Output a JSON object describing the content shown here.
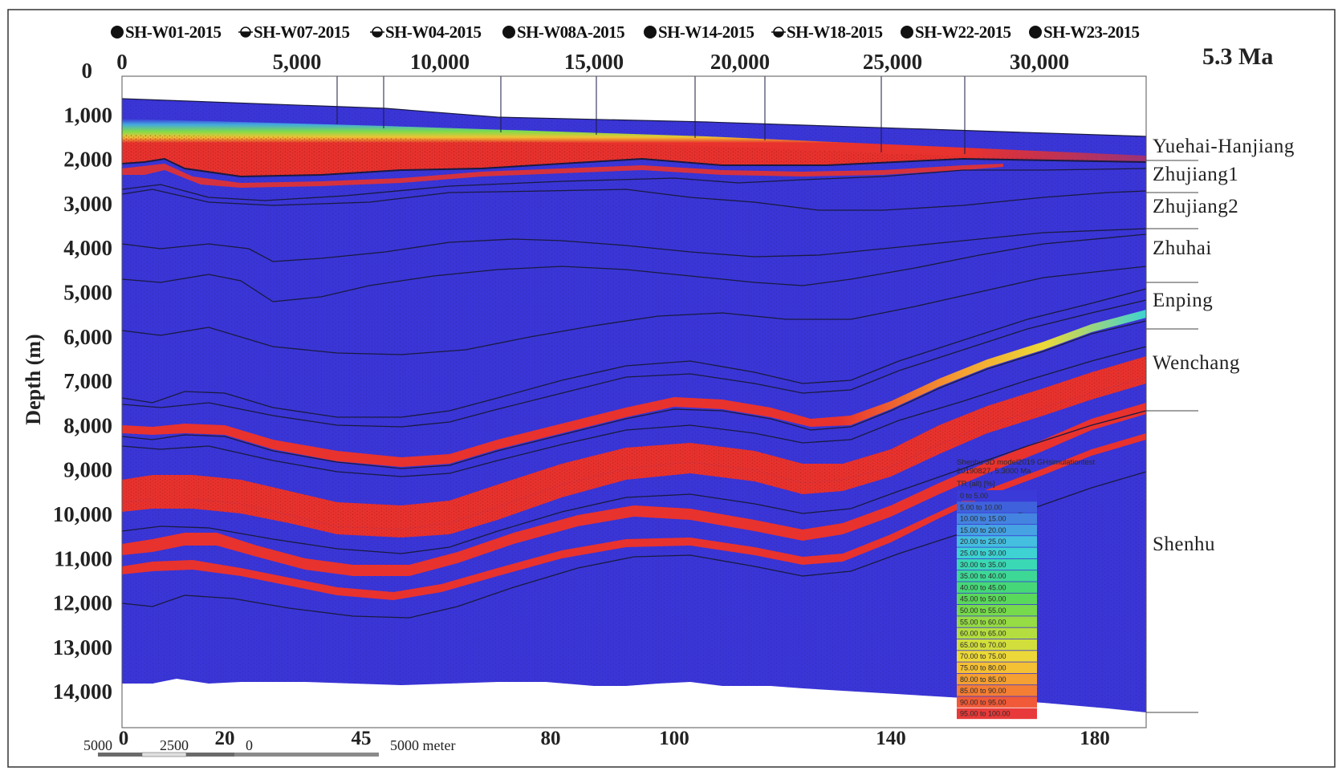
{
  "figure": {
    "age_label": "5.3 Ma",
    "y_axis_label": "Depth (m)",
    "top_axis_ticks": [
      "0",
      "5,000",
      "10,000",
      "15,000",
      "20,000",
      "25,000",
      "30,000"
    ],
    "depth_ticks": [
      "0",
      "1,000",
      "2,000",
      "3,000",
      "4,000",
      "5,000",
      "6,000",
      "7,000",
      "8,000",
      "9,000",
      "10,000",
      "11,000",
      "12,000",
      "13,000",
      "14,000"
    ],
    "bottom_axis_ticks": [
      "0",
      "20",
      "45",
      "80",
      "100",
      "140",
      "180"
    ],
    "wells": [
      {
        "name": "SH-W01-2015",
        "symbol": "filled"
      },
      {
        "name": "SH-W07-2015",
        "symbol": "gas"
      },
      {
        "name": "SH-W04-2015",
        "symbol": "gas"
      },
      {
        "name": "SH-W08A-2015",
        "symbol": "filled"
      },
      {
        "name": "SH-W14-2015",
        "symbol": "filled"
      },
      {
        "name": "SH-W18-2015",
        "symbol": "gas"
      },
      {
        "name": "SH-W22-2015",
        "symbol": "filled"
      },
      {
        "name": "SH-W23-2015",
        "symbol": "filled"
      }
    ],
    "formations": [
      "Yuehai-Hanjiang",
      "Zhujiang1",
      "Zhujiang2",
      "Zhuhai",
      "Enping",
      "Wenchang",
      "Shenhu"
    ],
    "scale_bar": {
      "labels": [
        "5000",
        "2500",
        "0",
        "5000 meter"
      ]
    },
    "legend": {
      "title_line1": "Shenhu 3D model2019 GHsimulationtest",
      "title_line2": "20190827, 5.3000 Ma",
      "property": "TR (all) [%]",
      "classes": [
        {
          "label": "0 to 5.00",
          "color": "#3a3ad8"
        },
        {
          "label": "5.00 to 10.00",
          "color": "#3f62dc"
        },
        {
          "label": "10.00 to 15.00",
          "color": "#4484e0"
        },
        {
          "label": "15.00 to 20.00",
          "color": "#46a2e2"
        },
        {
          "label": "20.00 to 25.00",
          "color": "#44bfe0"
        },
        {
          "label": "25.00 to 30.00",
          "color": "#3ed2d2"
        },
        {
          "label": "30.00 to 35.00",
          "color": "#3ad8b4"
        },
        {
          "label": "35.00 to 40.00",
          "color": "#3ed896"
        },
        {
          "label": "40.00 to 45.00",
          "color": "#46d878"
        },
        {
          "label": "45.00 to 50.00",
          "color": "#5ad85c"
        },
        {
          "label": "50.00 to 55.00",
          "color": "#76da4c"
        },
        {
          "label": "55.00 to 60.00",
          "color": "#96dc44"
        },
        {
          "label": "60.00 to 65.00",
          "color": "#b4de40"
        },
        {
          "label": "65.00 to 70.00",
          "color": "#d2de3c"
        },
        {
          "label": "70.00 to 75.00",
          "color": "#ecd838"
        },
        {
          "label": "75.00 to 80.00",
          "color": "#f4c034"
        },
        {
          "label": "80.00 to 85.00",
          "color": "#f4a032"
        },
        {
          "label": "85.00 to 90.00",
          "color": "#f47e34"
        },
        {
          "label": "90.00 to 95.00",
          "color": "#f05a38"
        },
        {
          "label": "95.00 to 100.00",
          "color": "#e83a3a"
        }
      ]
    },
    "colors": {
      "basin_fill": "#3a35d6",
      "mature_red": "#e8322e",
      "horizon_line": "#1a1a40"
    }
  }
}
